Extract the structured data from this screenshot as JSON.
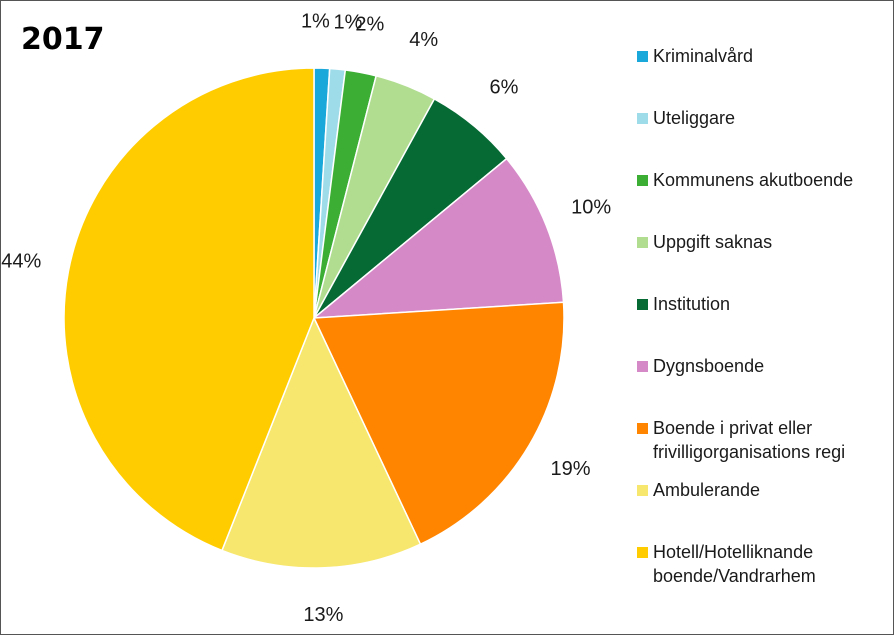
{
  "chart_data": {
    "type": "pie",
    "title": "2017",
    "slices": [
      {
        "name": "Kriminalvård",
        "value": 1,
        "label": "1%",
        "color": "#1aa7d9"
      },
      {
        "name": "Uteliggare",
        "value": 1,
        "label": "1%",
        "color": "#9fdcea"
      },
      {
        "name": "Kommunens akutboende",
        "value": 2,
        "label": "2%",
        "color": "#3cae34"
      },
      {
        "name": "Uppgift saknas",
        "value": 4,
        "label": "4%",
        "color": "#b1dd91"
      },
      {
        "name": "Institution",
        "value": 6,
        "label": "6%",
        "color": "#066a35"
      },
      {
        "name": "Dygnsboende",
        "value": 10,
        "label": "10%",
        "color": "#d589c7"
      },
      {
        "name": "Boende i privat eller frivilligorganisations regi",
        "value": 19,
        "label": "19%",
        "color": "#ff8400"
      },
      {
        "name": "Ambulerande",
        "value": 13,
        "label": "13%",
        "color": "#f7e76e"
      },
      {
        "name": "Hotell/Hotelliknande boende/Vandrarhem",
        "value": 44,
        "label": "44%",
        "color": "#ffcc00"
      }
    ],
    "legend": {
      "placement": "right",
      "items": [
        {
          "lines": [
            "Kriminalvård"
          ],
          "color": "#1aa7d9"
        },
        {
          "lines": [
            "Uteliggare"
          ],
          "color": "#9fdcea"
        },
        {
          "lines": [
            "Kommunens akutboende"
          ],
          "color": "#3cae34"
        },
        {
          "lines": [
            "Uppgift saknas"
          ],
          "color": "#b1dd91"
        },
        {
          "lines": [
            "Institution"
          ],
          "color": "#066a35"
        },
        {
          "lines": [
            "Dygnsboende"
          ],
          "color": "#d589c7"
        },
        {
          "lines": [
            "Boende i privat eller",
            "frivilligorganisations regi"
          ],
          "color": "#ff8400"
        },
        {
          "lines": [
            "Ambulerande"
          ],
          "color": "#f7e76e"
        },
        {
          "lines": [
            "Hotell/Hotelliknande",
            "boende/Vandrarhem"
          ],
          "color": "#ffcc00"
        }
      ]
    }
  }
}
